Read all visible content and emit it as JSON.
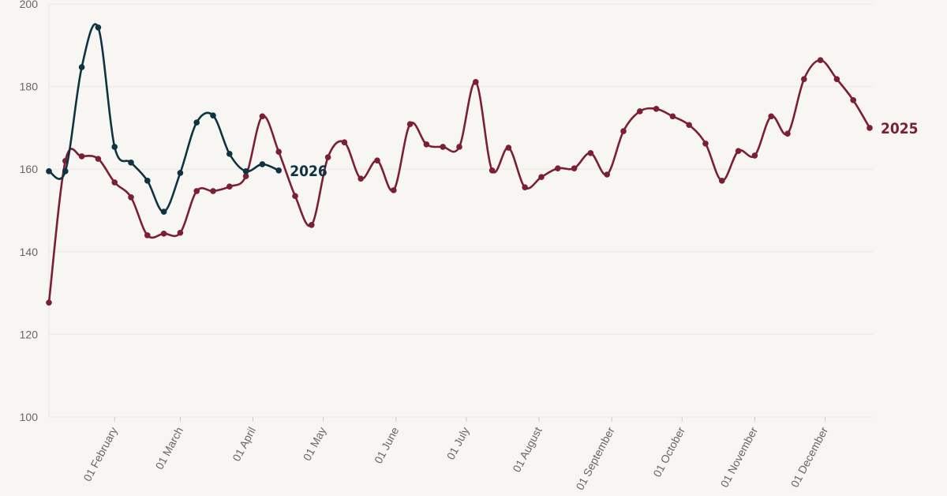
{
  "chart_data": {
    "type": "line",
    "x": [
      4,
      11,
      18,
      25,
      32,
      39,
      46,
      53,
      60,
      67,
      74,
      81,
      88,
      95,
      102,
      109,
      116,
      123,
      130,
      137,
      144,
      151,
      158,
      165,
      172,
      179,
      186,
      193,
      200,
      207,
      214,
      221,
      228,
      235,
      242,
      249,
      256,
      263,
      270,
      277,
      284,
      291,
      298,
      305,
      312,
      319,
      326,
      333,
      340,
      347,
      354
    ],
    "series": [
      {
        "name": "2025",
        "color": "#7a1f35",
        "values": [
          127.7,
          162.0,
          163.1,
          162.5,
          156.8,
          153.2,
          144.0,
          144.4,
          144.6,
          154.7,
          154.7,
          155.8,
          158.3,
          172.8,
          164.2,
          153.5,
          146.5,
          162.9,
          166.5,
          157.7,
          162.1,
          154.9,
          170.9,
          166.0,
          165.4,
          165.4,
          181.1,
          159.7,
          165.2,
          155.6,
          158.1,
          160.2,
          160.2,
          163.9,
          158.7,
          169.2,
          174.0,
          174.6,
          172.8,
          170.7,
          166.2,
          157.2,
          164.4,
          163.3,
          172.8,
          168.6,
          181.8,
          186.4,
          181.8,
          176.7,
          170.0
        ]
      },
      {
        "name": "2026",
        "color": "#0f3340",
        "values": [
          159.5,
          159.5,
          184.7,
          194.3,
          165.4,
          161.6,
          157.2,
          149.7,
          159.1,
          171.3,
          173.0,
          163.7,
          159.5,
          161.2,
          159.7,
          null,
          null,
          null,
          null,
          null,
          null,
          null,
          null,
          null,
          null,
          null,
          null,
          null,
          null,
          null,
          null,
          null,
          null,
          null,
          null,
          null,
          null,
          null,
          null,
          null,
          null,
          null,
          null,
          null,
          null,
          null,
          null,
          null,
          null,
          null,
          null
        ]
      }
    ],
    "xlim": [
      4,
      354
    ],
    "xticks": [
      {
        "value": 32,
        "label": "01 February"
      },
      {
        "value": 60,
        "label": "01 March"
      },
      {
        "value": 91,
        "label": "01 April"
      },
      {
        "value": 121,
        "label": "01 May"
      },
      {
        "value": 152,
        "label": "01 June"
      },
      {
        "value": 182,
        "label": "01 July"
      },
      {
        "value": 213,
        "label": "01 August"
      },
      {
        "value": 244,
        "label": "01 September"
      },
      {
        "value": 274,
        "label": "01 October"
      },
      {
        "value": 305,
        "label": "01 November"
      },
      {
        "value": 335,
        "label": "01 December"
      }
    ],
    "ylim": [
      100,
      200
    ],
    "yticks": [
      100,
      120,
      140,
      160,
      180,
      200
    ],
    "grid": true
  }
}
